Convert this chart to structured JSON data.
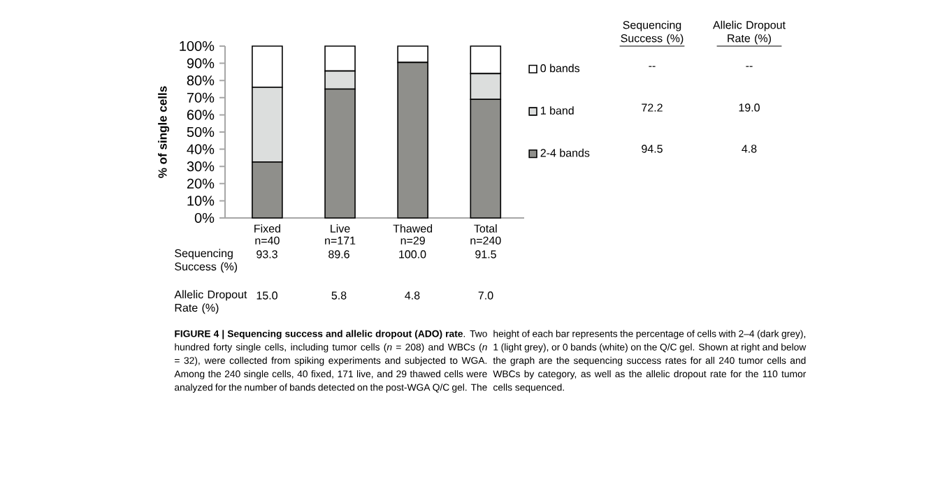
{
  "chart_data": {
    "type": "bar",
    "stacked": true,
    "ylabel": "% of single cells",
    "categories": [
      "Fixed n=40",
      "Live n=171",
      "Thawed n=29",
      "Total n=240"
    ],
    "series": [
      {
        "name": "2-4 bands",
        "color": "#8f8f8b",
        "values": [
          32.5,
          75,
          90.5,
          69
        ]
      },
      {
        "name": "1 band",
        "color": "#dcdedd",
        "values": [
          43.5,
          10.5,
          0,
          15
        ]
      },
      {
        "name": "0 bands",
        "color": "#ffffff",
        "values": [
          24,
          14.5,
          9.5,
          16
        ]
      }
    ],
    "ylim": [
      0,
      100
    ],
    "yticks": [
      {
        "value": 0,
        "label": "0%"
      },
      {
        "value": 10,
        "label": "10%"
      },
      {
        "value": 20,
        "label": "20%"
      },
      {
        "value": 30,
        "label": "30%"
      },
      {
        "value": 40,
        "label": "40%"
      },
      {
        "value": 50,
        "label": "50%"
      },
      {
        "value": 60,
        "label": "60%"
      },
      {
        "value": 70,
        "label": "70%"
      },
      {
        "value": 80,
        "label": "80%"
      },
      {
        "value": 90,
        "label": "90%"
      },
      {
        "value": 100,
        "label": "100%"
      }
    ],
    "legend": "right",
    "annotations": [
      "Sequencing Success (%)",
      "Allelic Dropout Rate (%)",
      "--",
      "--",
      "72.2",
      "19.0",
      "94.5",
      "4.8",
      "Sequencing Success (%)",
      "93.3",
      "89.6",
      "100.0",
      "91.5",
      "Allelic Dropout Rate (%)",
      "15.0",
      "5.8",
      "4.8",
      "7.0",
      "**FIGURE 4 | Sequencing success and allelic dropout (ADO) rate**. Two hundred forty single cells, including tumor cells (*n* = 208) and WBCs (*n* = 32), were collected from spiking experiments and subjected to WGA. Among the 240 single cells, 40 fixed, 171 live, and 29 thawed cells were analyzed for the number of bands detected on the post-WGA Q/C gel. The",
      "height of each bar represents the percentage of cells with 2–4 (dark grey), 1 (light grey), or 0 bands (white) on the Q/C gel. Shown at right and below the graph are the sequencing success rates for all 240 tumor cells and WBCs by category, as well as the allelic dropout rate for the 110 tumor cells sequenced."
    ]
  }
}
